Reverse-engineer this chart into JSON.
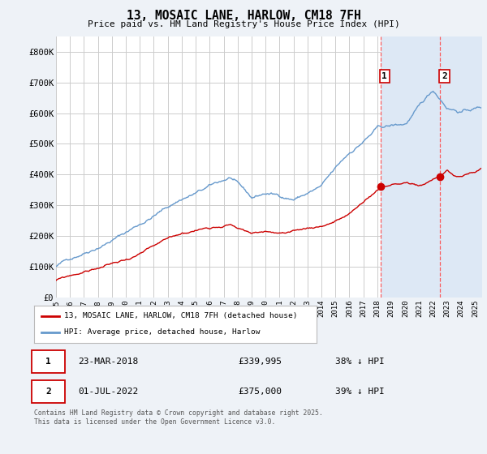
{
  "title": "13, MOSAIC LANE, HARLOW, CM18 7FH",
  "subtitle": "Price paid vs. HM Land Registry's House Price Index (HPI)",
  "ylim": [
    0,
    850000
  ],
  "yticks": [
    0,
    100000,
    200000,
    300000,
    400000,
    500000,
    600000,
    700000,
    800000
  ],
  "ytick_labels": [
    "£0",
    "£100K",
    "£200K",
    "£300K",
    "£400K",
    "£500K",
    "£600K",
    "£700K",
    "£800K"
  ],
  "xlim_start": 1995.0,
  "xlim_end": 2025.5,
  "xticks": [
    1995,
    1996,
    1997,
    1998,
    1999,
    2000,
    2001,
    2002,
    2003,
    2004,
    2005,
    2006,
    2007,
    2008,
    2009,
    2010,
    2011,
    2012,
    2013,
    2014,
    2015,
    2016,
    2017,
    2018,
    2019,
    2020,
    2021,
    2022,
    2023,
    2024,
    2025
  ],
  "red_line_color": "#cc0000",
  "blue_line_color": "#6699cc",
  "shade_color": "#dde8f5",
  "vline_color": "#ff4444",
  "marker1_x": 2018.22,
  "marker1_y": 339995,
  "marker2_x": 2022.5,
  "marker2_y": 375000,
  "legend_line1": "13, MOSAIC LANE, HARLOW, CM18 7FH (detached house)",
  "legend_line2": "HPI: Average price, detached house, Harlow",
  "table_row1_num": "1",
  "table_row1_date": "23-MAR-2018",
  "table_row1_price": "£339,995",
  "table_row1_hpi": "38% ↓ HPI",
  "table_row2_num": "2",
  "table_row2_date": "01-JUL-2022",
  "table_row2_price": "£375,000",
  "table_row2_hpi": "39% ↓ HPI",
  "footnote": "Contains HM Land Registry data © Crown copyright and database right 2025.\nThis data is licensed under the Open Government Licence v3.0.",
  "bg_color": "#eef2f7",
  "plot_bg_color": "#ffffff",
  "grid_color": "#cccccc"
}
